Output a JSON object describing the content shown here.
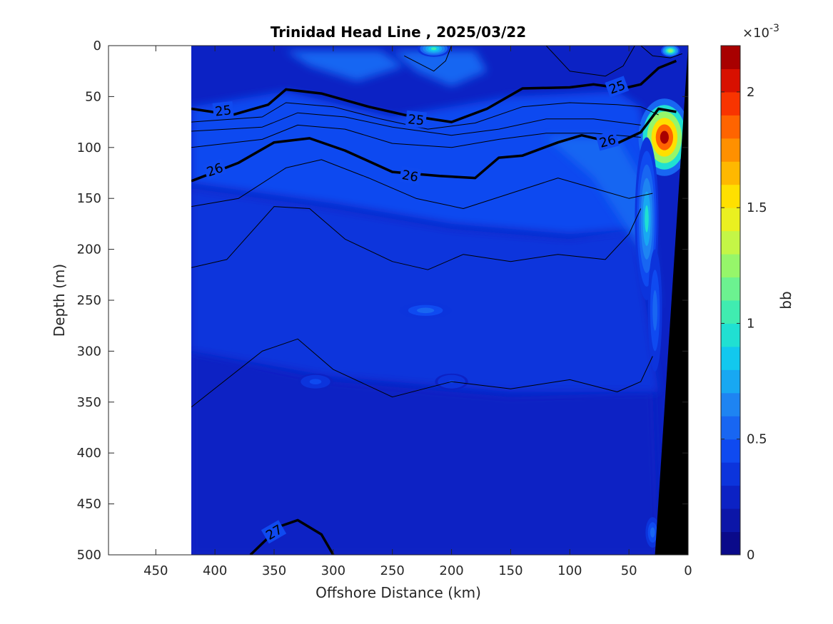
{
  "chart_data": {
    "type": "heatmap",
    "title": "Trinidad Head Line , 2025/03/22",
    "xlabel": "Offshore Distance (km)",
    "ylabel": "Depth (m)",
    "xlim": [
      490,
      0
    ],
    "ylim": [
      0,
      500
    ],
    "x_reversed": true,
    "y_reversed": true,
    "xticks": [
      450,
      400,
      350,
      300,
      250,
      200,
      150,
      100,
      50,
      0
    ],
    "yticks": [
      0,
      50,
      100,
      150,
      200,
      250,
      300,
      350,
      400,
      450,
      500
    ],
    "data_extent_x": [
      420,
      0
    ],
    "background_level": 0.25,
    "colorbar": {
      "label": "bb",
      "exponent": "×10",
      "exponent_power": "-3",
      "range": [
        0,
        2.2
      ],
      "ticks": [
        0,
        0.5,
        1,
        1.5,
        2
      ],
      "tick_labels": [
        "0",
        "0.5",
        "1",
        "1.5",
        "2"
      ],
      "colors": [
        "#0a0a8a",
        "#0c16a8",
        "#0c22c4",
        "#0c34dc",
        "#0f4af0",
        "#1866f2",
        "#1e84f2",
        "#18a8f2",
        "#12c8ee",
        "#20e0d2",
        "#40ecb0",
        "#6cf290",
        "#96f66a",
        "#c4f646",
        "#eaf020",
        "#ffe000",
        "#ffb800",
        "#ff9000",
        "#ff6400",
        "#f83400",
        "#d81000",
        "#a80000"
      ]
    },
    "regions": [
      {
        "name": "deep water",
        "level": 0.22,
        "path": [
          [
            420,
            300
          ],
          [
            300,
            330
          ],
          [
            150,
            345
          ],
          [
            30,
            340
          ],
          [
            25,
            500
          ],
          [
            420,
            500
          ]
        ]
      },
      {
        "name": "mid water",
        "level": 0.3,
        "path": [
          [
            420,
            140
          ],
          [
            300,
            160
          ],
          [
            200,
            180
          ],
          [
            100,
            190
          ],
          [
            45,
            180
          ],
          [
            25,
            340
          ],
          [
            150,
            340
          ],
          [
            300,
            325
          ],
          [
            420,
            300
          ]
        ]
      },
      {
        "name": "upper water",
        "level": 0.4,
        "path": [
          [
            420,
            60
          ],
          [
            340,
            45
          ],
          [
            250,
            70
          ],
          [
            150,
            50
          ],
          [
            60,
            45
          ],
          [
            40,
            60
          ],
          [
            30,
            150
          ],
          [
            45,
            180
          ],
          [
            100,
            185
          ],
          [
            200,
            175
          ],
          [
            300,
            155
          ],
          [
            420,
            135
          ]
        ]
      },
      {
        "name": "surface patch west",
        "level": 0.5,
        "path": [
          [
            340,
            5
          ],
          [
            320,
            20
          ],
          [
            280,
            35
          ],
          [
            240,
            20
          ],
          [
            260,
            5
          ]
        ]
      },
      {
        "name": "surface patch center",
        "level": 0.55,
        "path": [
          [
            250,
            5
          ],
          [
            230,
            25
          ],
          [
            200,
            40
          ],
          [
            170,
            25
          ],
          [
            180,
            5
          ]
        ]
      },
      {
        "name": "nearshore plume",
        "level": 0.5,
        "path": [
          [
            120,
            90
          ],
          [
            80,
            130
          ],
          [
            40,
            200
          ],
          [
            25,
            260
          ],
          [
            35,
            140
          ],
          [
            60,
            90
          ]
        ]
      }
    ],
    "features": [
      {
        "name": "surface high",
        "x": 215,
        "depth": 3,
        "rx": 14,
        "ry": 8,
        "level": 1.0
      },
      {
        "name": "surface spot",
        "x": 15,
        "depth": 5,
        "rx": 8,
        "ry": 6,
        "level": 1.3
      },
      {
        "name": "nearshore maximum",
        "x": 20,
        "depth": 90,
        "rx": 22,
        "ry": 38,
        "level": 2.2
      },
      {
        "name": "nearshore edge",
        "x": 35,
        "depth": 170,
        "rx": 10,
        "ry": 80,
        "level": 0.9
      },
      {
        "name": "nearshore edge deep",
        "x": 28,
        "depth": 260,
        "rx": 6,
        "ry": 60,
        "level": 0.6
      },
      {
        "name": "mid spot",
        "x": 222,
        "depth": 260,
        "rx": 22,
        "ry": 8,
        "level": 0.6
      },
      {
        "name": "spot",
        "x": 315,
        "depth": 330,
        "rx": 15,
        "ry": 8,
        "level": 0.45
      },
      {
        "name": "spot",
        "x": 200,
        "depth": 330,
        "rx": 14,
        "ry": 8,
        "level": 0.4
      },
      {
        "name": "shelf bottom spot",
        "x": 30,
        "depth": 478,
        "rx": 6,
        "ry": 15,
        "level": 0.55
      }
    ],
    "contour_lines": [
      {
        "value": 25,
        "labeled": true,
        "bold": true,
        "points": [
          [
            420,
            62
          ],
          [
            385,
            68
          ],
          [
            355,
            58
          ],
          [
            340,
            43
          ],
          [
            310,
            47
          ],
          [
            270,
            60
          ],
          [
            240,
            68
          ],
          [
            200,
            75
          ],
          [
            170,
            62
          ],
          [
            140,
            42
          ],
          [
            100,
            41
          ],
          [
            80,
            38
          ],
          [
            55,
            42
          ],
          [
            40,
            38
          ],
          [
            25,
            22
          ],
          [
            10,
            15
          ]
        ]
      },
      {
        "value": null,
        "labeled": false,
        "bold": false,
        "points": [
          [
            420,
            75
          ],
          [
            360,
            70
          ],
          [
            340,
            56
          ],
          [
            300,
            60
          ],
          [
            260,
            72
          ],
          [
            220,
            82
          ],
          [
            180,
            76
          ],
          [
            140,
            60
          ],
          [
            100,
            56
          ],
          [
            60,
            58
          ],
          [
            40,
            60
          ],
          [
            25,
            68
          ]
        ]
      },
      {
        "value": null,
        "labeled": false,
        "bold": false,
        "points": [
          [
            420,
            84
          ],
          [
            360,
            80
          ],
          [
            330,
            66
          ],
          [
            290,
            70
          ],
          [
            250,
            80
          ],
          [
            200,
            88
          ],
          [
            160,
            82
          ],
          [
            120,
            72
          ],
          [
            80,
            72
          ],
          [
            40,
            78
          ]
        ]
      },
      {
        "value": null,
        "labeled": false,
        "bold": false,
        "points": [
          [
            420,
            100
          ],
          [
            360,
            92
          ],
          [
            330,
            78
          ],
          [
            290,
            82
          ],
          [
            250,
            96
          ],
          [
            200,
            100
          ],
          [
            160,
            92
          ],
          [
            120,
            86
          ],
          [
            80,
            86
          ],
          [
            40,
            90
          ]
        ]
      },
      {
        "value": 26,
        "labeled": true,
        "bold": true,
        "points": [
          [
            420,
            133
          ],
          [
            380,
            115
          ],
          [
            350,
            95
          ],
          [
            320,
            91
          ],
          [
            290,
            103
          ],
          [
            250,
            124
          ],
          [
            210,
            128
          ],
          [
            180,
            130
          ],
          [
            160,
            110
          ],
          [
            140,
            108
          ],
          [
            110,
            95
          ],
          [
            90,
            88
          ],
          [
            75,
            92
          ],
          [
            60,
            96
          ],
          [
            40,
            85
          ],
          [
            25,
            62
          ],
          [
            10,
            65
          ]
        ]
      },
      {
        "value": null,
        "labeled": false,
        "bold": false,
        "points": [
          [
            420,
            158
          ],
          [
            380,
            150
          ],
          [
            340,
            120
          ],
          [
            310,
            112
          ],
          [
            270,
            130
          ],
          [
            230,
            150
          ],
          [
            190,
            160
          ],
          [
            150,
            145
          ],
          [
            110,
            130
          ],
          [
            80,
            140
          ],
          [
            50,
            150
          ],
          [
            30,
            145
          ]
        ]
      },
      {
        "value": null,
        "labeled": false,
        "bold": false,
        "points": [
          [
            420,
            218
          ],
          [
            390,
            210
          ],
          [
            350,
            158
          ],
          [
            320,
            160
          ],
          [
            290,
            190
          ],
          [
            250,
            212
          ],
          [
            220,
            220
          ],
          [
            190,
            205
          ],
          [
            150,
            212
          ],
          [
            110,
            205
          ],
          [
            70,
            210
          ],
          [
            50,
            185
          ],
          [
            40,
            160
          ]
        ]
      },
      {
        "value": null,
        "labeled": false,
        "bold": false,
        "points": [
          [
            420,
            355
          ],
          [
            360,
            300
          ],
          [
            330,
            288
          ],
          [
            300,
            318
          ],
          [
            250,
            345
          ],
          [
            200,
            330
          ],
          [
            150,
            337
          ],
          [
            100,
            328
          ],
          [
            60,
            340
          ],
          [
            40,
            330
          ],
          [
            30,
            305
          ]
        ]
      },
      {
        "value": 27,
        "labeled": true,
        "bold": true,
        "points": [
          [
            370,
            500
          ],
          [
            345,
            472
          ],
          [
            330,
            466
          ],
          [
            310,
            480
          ],
          [
            300,
            500
          ]
        ]
      },
      {
        "value": null,
        "labeled": false,
        "bold": false,
        "points": [
          [
            240,
            10
          ],
          [
            215,
            25
          ],
          [
            205,
            15
          ],
          [
            200,
            0
          ]
        ]
      },
      {
        "value": null,
        "labeled": false,
        "bold": false,
        "points": [
          [
            120,
            0
          ],
          [
            100,
            25
          ],
          [
            70,
            30
          ],
          [
            55,
            20
          ],
          [
            45,
            0
          ]
        ]
      },
      {
        "value": null,
        "labeled": false,
        "bold": false,
        "points": [
          [
            40,
            0
          ],
          [
            30,
            10
          ],
          [
            15,
            12
          ],
          [
            5,
            8
          ]
        ]
      }
    ],
    "contour_labels": [
      {
        "text": "25",
        "x": 393,
        "depth": 64,
        "angle": -6
      },
      {
        "text": "25",
        "x": 230,
        "depth": 73,
        "angle": 6
      },
      {
        "text": "25",
        "x": 60,
        "depth": 41,
        "angle": -20
      },
      {
        "text": "26",
        "x": 400,
        "depth": 122,
        "angle": -20
      },
      {
        "text": "26",
        "x": 235,
        "depth": 128,
        "angle": 10
      },
      {
        "text": "26",
        "x": 68,
        "depth": 94,
        "angle": -15
      },
      {
        "text": "27",
        "x": 350,
        "depth": 478,
        "angle": -30
      }
    ],
    "bathymetry": [
      [
        0,
        0
      ],
      [
        28,
        500
      ],
      [
        0,
        500
      ]
    ]
  }
}
